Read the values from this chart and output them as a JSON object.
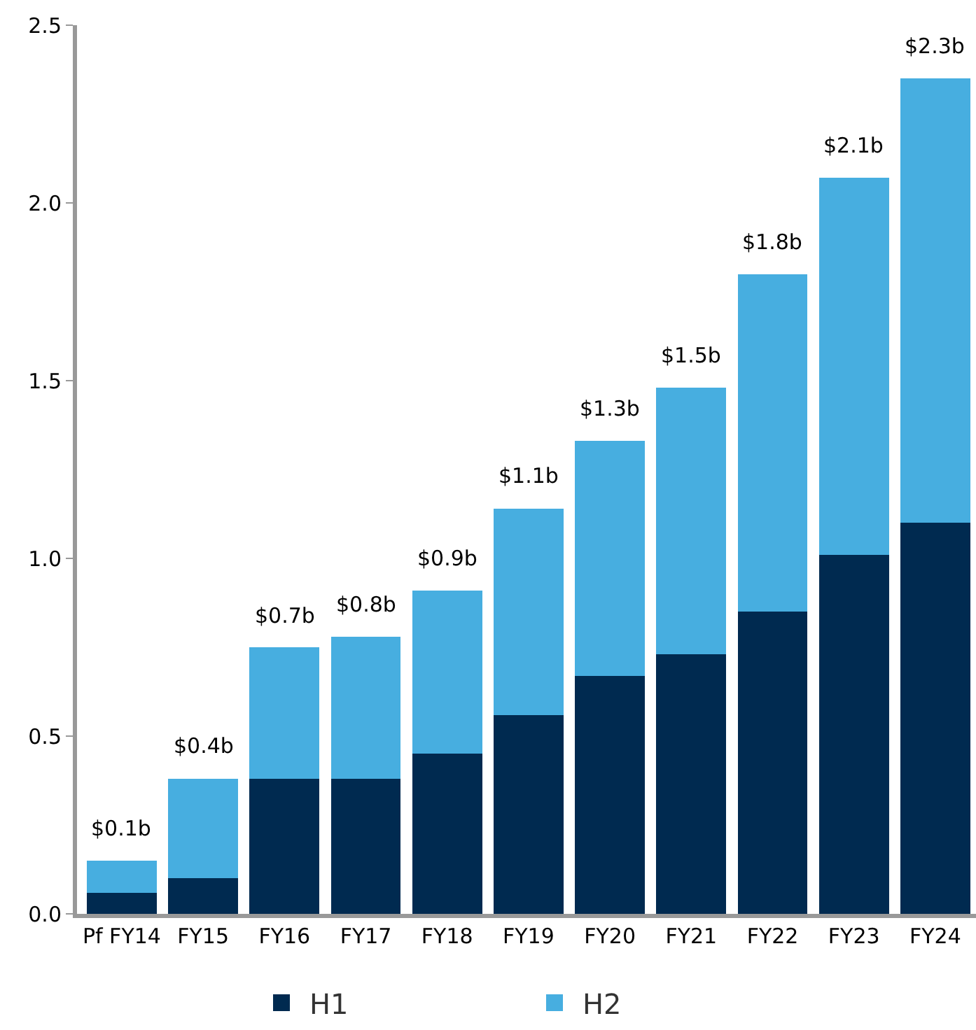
{
  "chart_data": {
    "type": "bar",
    "stacked": true,
    "categories": [
      "Pf FY14",
      "FY15",
      "FY16",
      "FY17",
      "FY18",
      "FY19",
      "FY20",
      "FY21",
      "FY22",
      "FY23",
      "FY24"
    ],
    "series": [
      {
        "name": "H1",
        "color": "#002a50",
        "values": [
          0.06,
          0.1,
          0.38,
          0.38,
          0.45,
          0.56,
          0.67,
          0.73,
          0.85,
          1.01,
          1.1
        ]
      },
      {
        "name": "H2",
        "color": "#47aee0",
        "values": [
          0.09,
          0.28,
          0.37,
          0.4,
          0.46,
          0.58,
          0.66,
          0.75,
          0.95,
          1.06,
          1.25
        ]
      }
    ],
    "totals": [
      "$0.1b",
      "$0.4b",
      "$0.7b",
      "$0.8b",
      "$0.9b",
      "$1.1b",
      "$1.3b",
      "$1.5b",
      "$1.8b",
      "$2.1b",
      "$2.3b"
    ],
    "ylim": [
      0,
      2.5
    ],
    "yticks": [
      {
        "value": 0,
        "label": "0.0"
      },
      {
        "value": 0.5,
        "label": "0.5"
      },
      {
        "value": 1,
        "label": "1.0"
      },
      {
        "value": 1.5,
        "label": "1.5"
      },
      {
        "value": 2,
        "label": "2.0"
      },
      {
        "value": 2.5,
        "label": "2.5"
      }
    ],
    "legend": "bottom"
  }
}
